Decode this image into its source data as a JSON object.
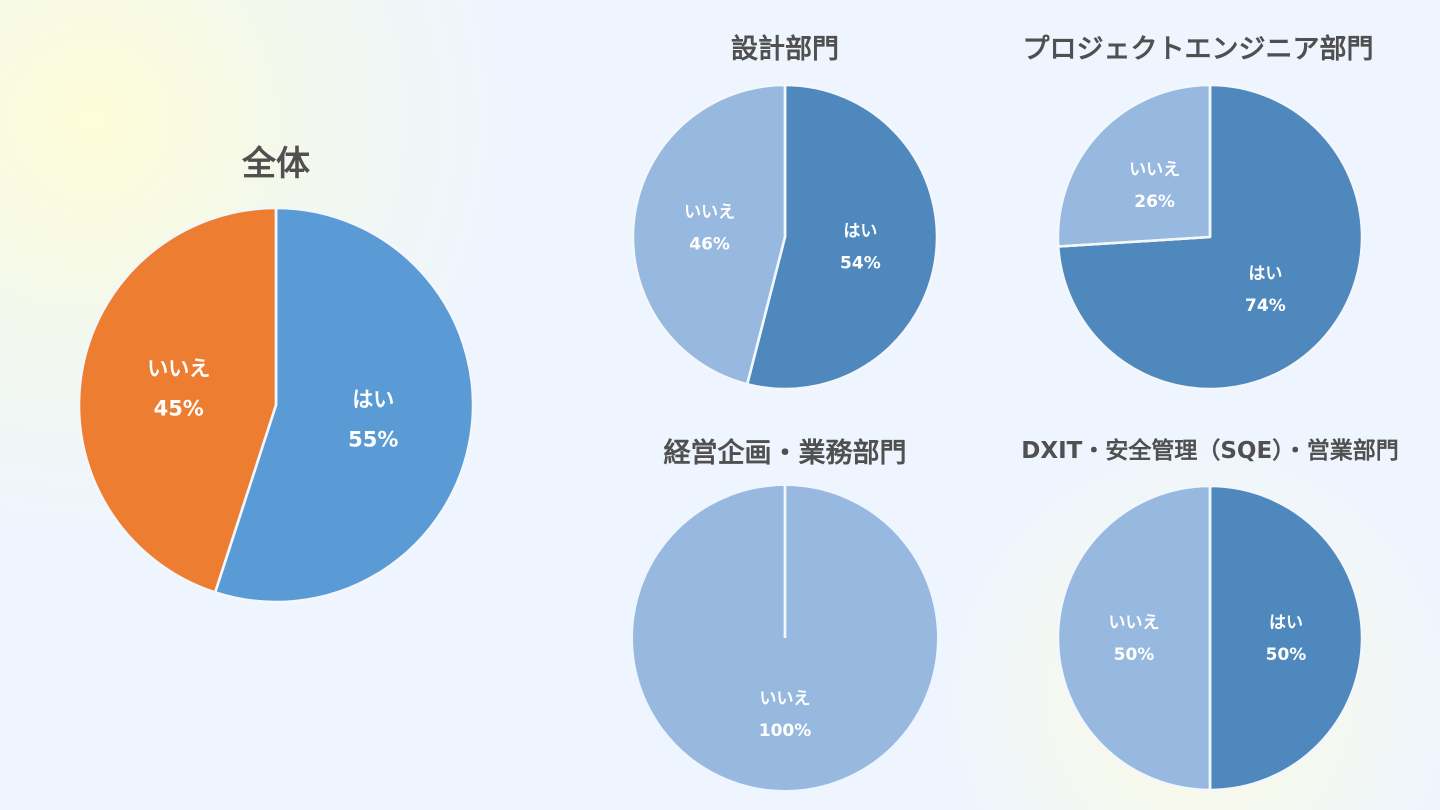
{
  "chart_data": [
    {
      "type": "pie",
      "title": "全体",
      "categories": [
        "はい",
        "いいえ"
      ],
      "values": [
        55,
        45
      ],
      "labels": [
        "55%",
        "45%"
      ],
      "colors": [
        "#5B9BD5",
        "#ED7D31"
      ]
    },
    {
      "type": "pie",
      "title": "設計部門",
      "categories": [
        "はい",
        "いいえ"
      ],
      "values": [
        54,
        46
      ],
      "labels": [
        "54%",
        "46%"
      ],
      "colors": [
        "#4F88BD",
        "#97B8DF"
      ]
    },
    {
      "type": "pie",
      "title": "プロジェクトエンジニア部門",
      "categories": [
        "はい",
        "いいえ"
      ],
      "values": [
        74,
        26
      ],
      "labels": [
        "74%",
        "26%"
      ],
      "colors": [
        "#4F88BD",
        "#97B8DF"
      ]
    },
    {
      "type": "pie",
      "title": "経営企画・業務部門",
      "categories": [
        "はい",
        "いいえ"
      ],
      "values": [
        0,
        100
      ],
      "labels": [
        "0%",
        "100%"
      ],
      "colors": [
        "#4F88BD",
        "#97B8DF"
      ]
    },
    {
      "type": "pie",
      "title": "DXIT・安全管理（SQE）・営業部門",
      "categories": [
        "はい",
        "いいえ"
      ],
      "values": [
        50,
        50
      ],
      "labels": [
        "50%",
        "50%"
      ],
      "colors": [
        "#4F88BD",
        "#97B8DF"
      ]
    }
  ]
}
